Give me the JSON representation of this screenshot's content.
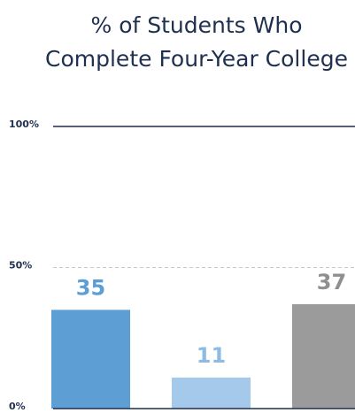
{
  "chart_data": {
    "type": "bar",
    "title": [
      "% of Students Who",
      "Complete Four-Year College"
    ],
    "values": [
      35,
      11,
      37
    ],
    "colors": [
      "#5d9fd5",
      "#a5c9ea",
      "#9b9b9b"
    ],
    "label_colors": [
      "#5d9fd5",
      "#8fbbe3",
      "#8f8f8f"
    ],
    "ylim": [
      0,
      100
    ],
    "yticks": [
      {
        "value": 0,
        "label": "0%"
      },
      {
        "value": 50,
        "label": "50%"
      },
      {
        "value": 100,
        "label": "100%"
      }
    ],
    "grid": true
  }
}
